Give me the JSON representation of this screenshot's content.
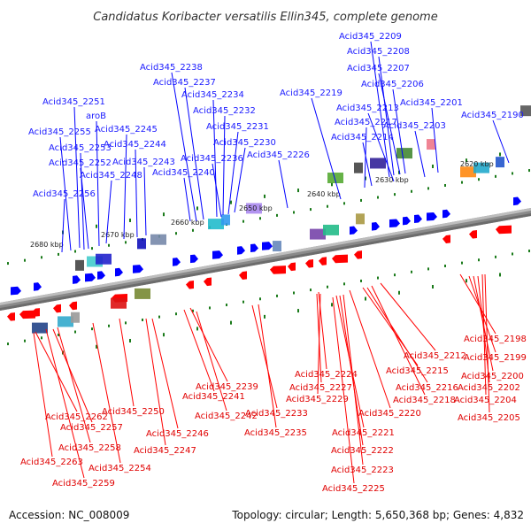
{
  "title": "Candidatus Koribacter versatilis Ellin345, complete genome",
  "footer": {
    "accession": "Accession: NC_008009",
    "summary": "Topology: circular; Length: 5,650,368 bp; Genes: 4,832"
  },
  "colors": {
    "forward": "#0000ff",
    "reverse": "#ff0000",
    "label_forward": "#1a1aff",
    "label_reverse": "#e00000",
    "tick": "#1a7a1a",
    "backbone": "#888888"
  },
  "kbp_ticks": [
    {
      "text": "2620 kbp"
    },
    {
      "text": "2630 kbp"
    },
    {
      "text": "2640 kbp"
    },
    {
      "text": "2650 kbp"
    },
    {
      "text": "2660 kbp"
    },
    {
      "text": "2670 kbp"
    },
    {
      "text": "2680 kbp"
    }
  ],
  "forward_labels": [
    "Acid345_2209",
    "Acid345_2208",
    "Acid345_2207",
    "Acid345_2206",
    "Acid345_2201",
    "Acid345_2190",
    "Acid345_2213",
    "Acid345_2203",
    "Acid345_2219",
    "Acid345_2217",
    "Acid345_2214",
    "Acid345_2238",
    "Acid345_2237",
    "Acid345_2234",
    "Acid345_2232",
    "Acid345_2231",
    "Acid345_2230",
    "Acid345_2226",
    "Acid345_2236",
    "Acid345_2240",
    "Acid345_2251",
    "aroB",
    "Acid345_2255",
    "Acid345_2245",
    "Acid345_2253",
    "Acid345_2244",
    "Acid345_2252",
    "Acid345_2243",
    "Acid345_2248",
    "Acid345_2256"
  ],
  "reverse_labels": [
    "Acid345_2198",
    "Acid345_2212",
    "Acid345_2199",
    "Acid345_2215",
    "Acid345_2200",
    "Acid345_2224",
    "Acid345_2216",
    "Acid345_2202",
    "Acid345_2239",
    "Acid345_2227",
    "Acid345_2218",
    "Acid345_2204",
    "Acid345_2241",
    "Acid345_2229",
    "Acid345_2220",
    "Acid345_2205",
    "Acid345_2250",
    "Acid345_2242",
    "Acid345_2233",
    "Acid345_2262",
    "Acid345_2257",
    "Acid345_2246",
    "Acid345_2235",
    "Acid345_2221",
    "Acid345_2258",
    "Acid345_2222",
    "Acid345_2247",
    "Acid345_2263",
    "Acid345_2254",
    "Acid345_2223",
    "Acid345_2259",
    "Acid345_2225"
  ]
}
